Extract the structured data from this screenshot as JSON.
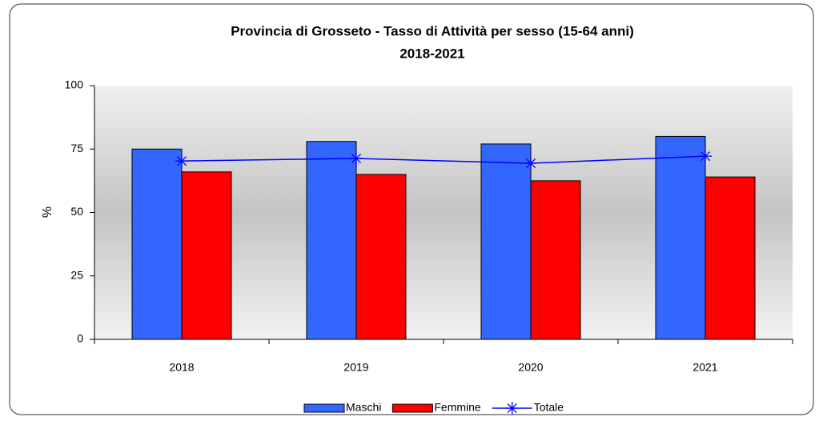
{
  "chart_data": {
    "type": "bar",
    "title": "Provincia di Grosseto - Tasso di Attività per sesso  (15-64 anni)",
    "subtitle": "2018-2021",
    "y_label": "%",
    "categories": [
      "2018",
      "2019",
      "2020",
      "2021"
    ],
    "series": [
      {
        "name": "Maschi",
        "color": "#3366ff",
        "type": "bar",
        "values": [
          75,
          78,
          77,
          80
        ]
      },
      {
        "name": "Femmine",
        "color": "#ff0000",
        "type": "bar",
        "values": [
          66,
          65,
          62.5,
          64
        ]
      },
      {
        "name": "Totale",
        "color": "#0000ff",
        "type": "line",
        "values": [
          70.3,
          71.3,
          69.4,
          72.2
        ]
      }
    ],
    "ylim": [
      0,
      100
    ],
    "yticks": [
      0,
      25,
      50,
      75,
      100
    ],
    "grid": false,
    "legend": "bottom"
  }
}
